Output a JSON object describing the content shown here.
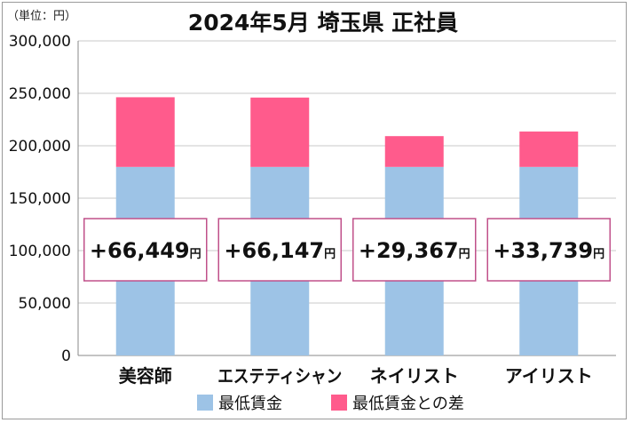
{
  "chart_data": {
    "type": "bar",
    "stacked": true,
    "title": "2024年5月 埼玉県 正社員",
    "unit_label": "（単位：円）",
    "ylim": [
      0,
      300000
    ],
    "yticks": [
      0,
      50000,
      100000,
      150000,
      200000,
      250000,
      300000
    ],
    "ytick_labels": [
      "0",
      "50,000",
      "100,000",
      "150,000",
      "200,000",
      "250,000",
      "300,000"
    ],
    "categories": [
      "美容師",
      "エステティシャン",
      "ネイリスト",
      "アイリスト"
    ],
    "series": [
      {
        "name": "最低賃金",
        "color": "#9dc3e6",
        "values": [
          179800,
          179800,
          179800,
          179800
        ]
      },
      {
        "name": "最低賃金との差",
        "color": "#ff5b8c",
        "values": [
          66449,
          66147,
          29367,
          33739
        ]
      }
    ],
    "annotations": [
      {
        "text": "+66,449",
        "unit": "円"
      },
      {
        "text": "+66,147",
        "unit": "円"
      },
      {
        "text": "+29,367",
        "unit": "円"
      },
      {
        "text": "+33,739",
        "unit": "円"
      }
    ],
    "colors": {
      "grid": "#c8c8c8",
      "axis": "#888888",
      "annotation_border": "#c0508a"
    },
    "grid": true,
    "legend": "bottom"
  }
}
